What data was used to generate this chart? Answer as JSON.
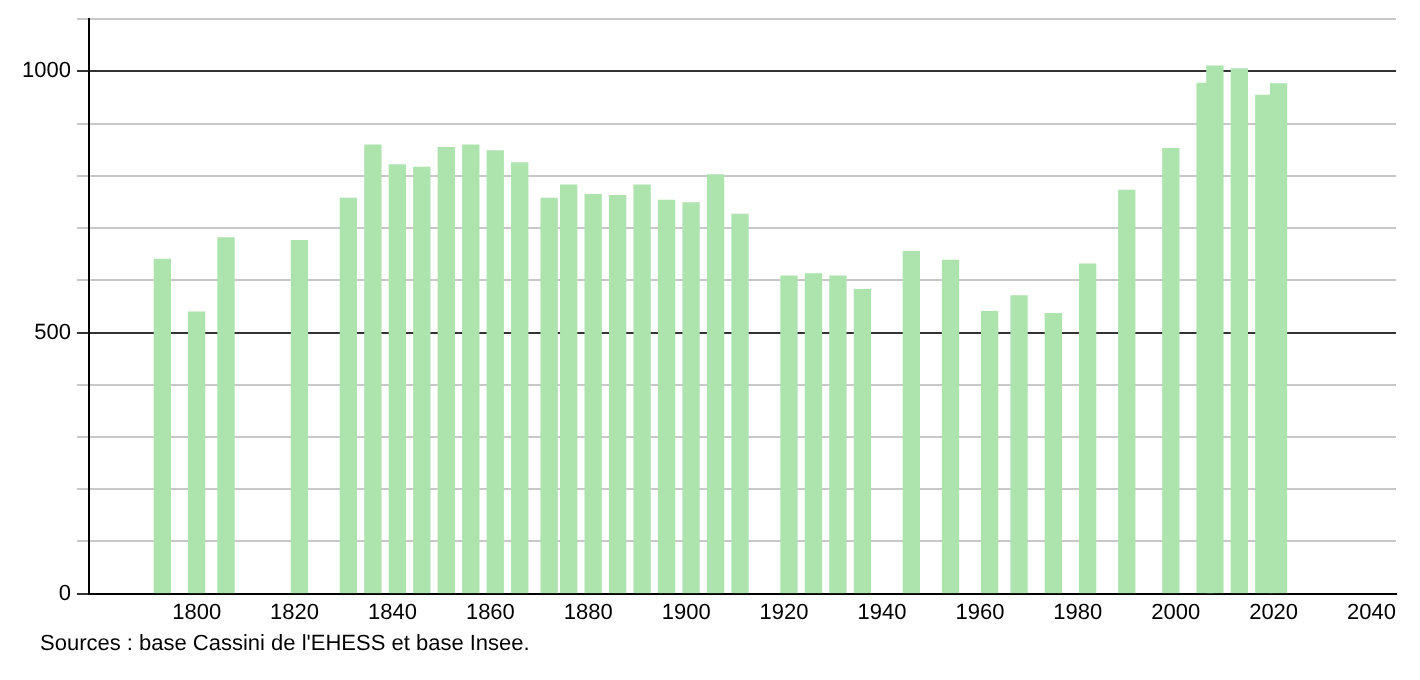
{
  "chart_data": {
    "type": "bar",
    "x": [
      1793,
      1800,
      1806,
      1821,
      1831,
      1836,
      1841,
      1846,
      1851,
      1856,
      1861,
      1866,
      1872,
      1876,
      1881,
      1886,
      1891,
      1896,
      1901,
      1906,
      1911,
      1921,
      1926,
      1931,
      1936,
      1946,
      1954,
      1962,
      1968,
      1975,
      1982,
      1990,
      1999,
      2006,
      2008,
      2013,
      2018,
      2021
    ],
    "values": [
      640,
      539,
      681,
      676,
      757,
      859,
      821,
      816,
      854,
      859,
      848,
      825,
      757,
      782,
      764,
      762,
      782,
      753,
      748,
      802,
      726,
      608,
      612,
      608,
      582,
      655,
      638,
      540,
      570,
      536,
      631,
      772,
      852,
      977,
      1010,
      1005,
      954,
      976
    ],
    "color": "#ade3ad",
    "xlim": [
      1778,
      2045
    ],
    "xticks": [
      1800,
      1820,
      1840,
      1860,
      1880,
      1900,
      1920,
      1940,
      1960,
      1980,
      2000,
      2020,
      2040
    ],
    "ylim": [
      0,
      1100
    ],
    "yticks": [
      0,
      {
        "value": 100,
        "label": null
      },
      {
        "value": 200,
        "label": null
      },
      {
        "value": 300,
        "label": null
      },
      {
        "value": 400,
        "label": null
      },
      500,
      {
        "value": 600,
        "label": null
      },
      {
        "value": 700,
        "label": null
      },
      {
        "value": 800,
        "label": null
      },
      {
        "value": 900,
        "label": null
      },
      1000,
      {
        "value": 1100,
        "label": null
      }
    ],
    "grid": "y",
    "annotations": [
      "Sources : base Cassini de l'EHESS et base Insee."
    ]
  }
}
